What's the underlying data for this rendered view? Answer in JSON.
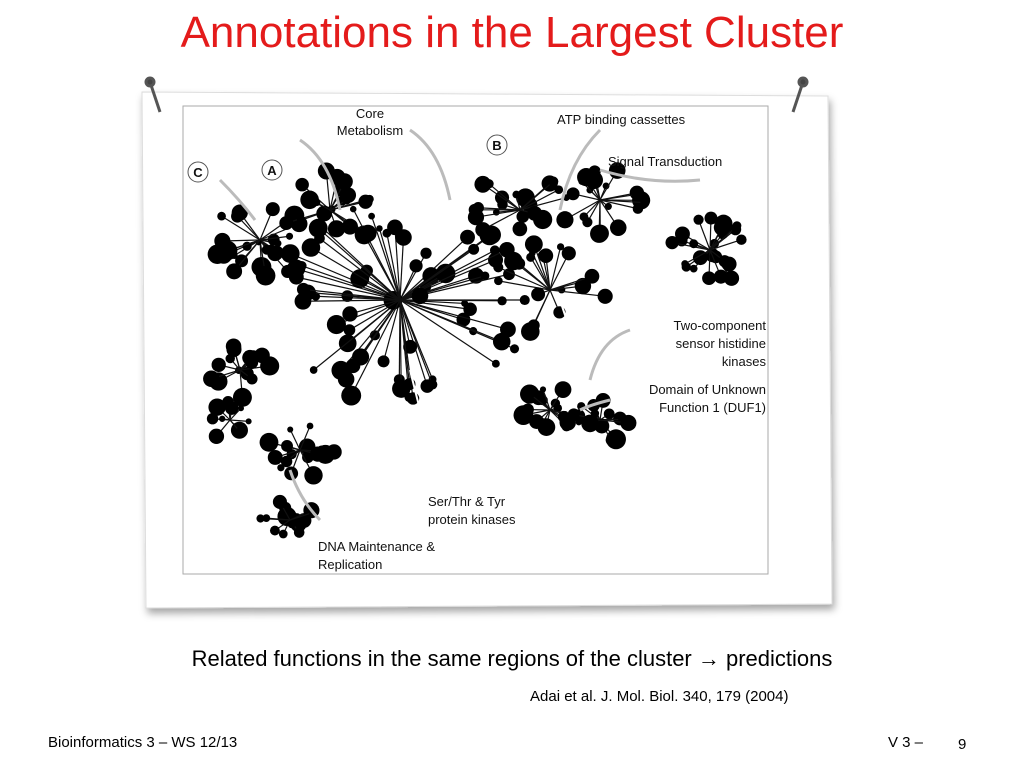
{
  "header": {
    "title": "Annotations in the Largest Cluster"
  },
  "figure": {
    "labels": {
      "core": [
        "Core",
        "Metabolism"
      ],
      "atp": [
        "ATP binding cassettes"
      ],
      "signal": [
        "Signal Transduction"
      ],
      "a": "A",
      "b": "B",
      "c": "C",
      "twocomp": [
        "Two-component",
        "sensor histidine",
        "kinases"
      ],
      "duf": [
        "Domain of Unknown",
        "Function 1 (DUF1)"
      ],
      "serthr": [
        "Ser/Thr & Tyr",
        "protein kinases"
      ],
      "dna": [
        "DNA Maintenance &",
        "Replication"
      ]
    }
  },
  "caption": "Related functions in the same regions of the cluster  →  predictions",
  "citation": "Adai et al. J. Mol. Biol. 340, 179 (2004)",
  "footer": {
    "left": "Bioinformatics 3 – WS 12/13",
    "section": "V 3 –",
    "page": "9"
  }
}
